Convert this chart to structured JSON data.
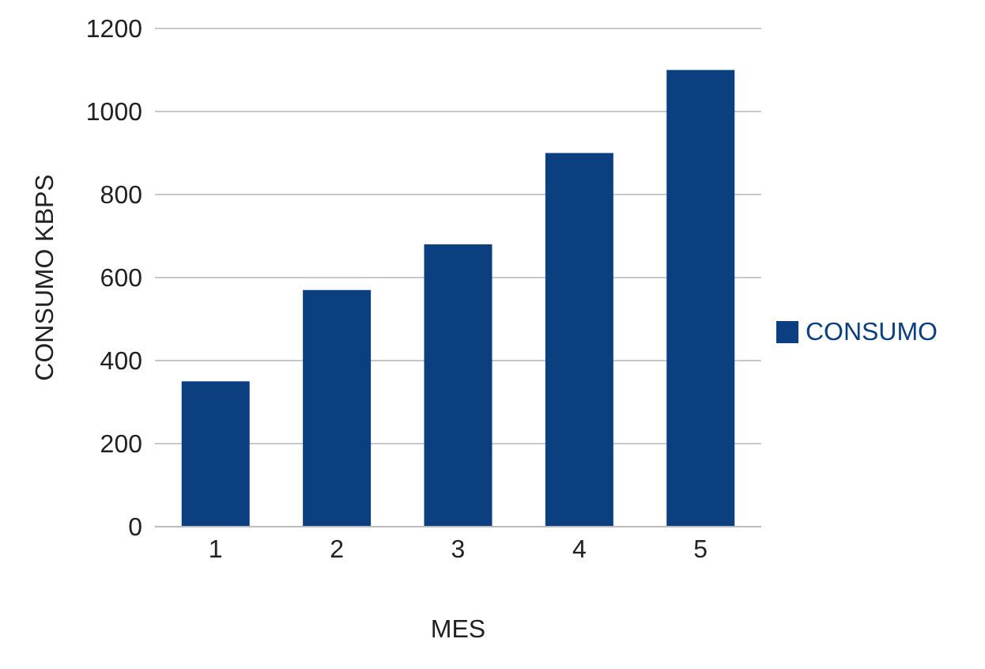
{
  "chart_data": {
    "type": "bar",
    "xlabel": "MES",
    "ylabel": "CONSUMO KBPS",
    "categories": [
      "1",
      "2",
      "3",
      "4",
      "5"
    ],
    "series": [
      {
        "name": "CONSUMO",
        "color": "#0b3f80",
        "values": [
          350,
          570,
          680,
          900,
          1100
        ]
      }
    ],
    "ylim": [
      0,
      1200
    ],
    "yticks": [
      0,
      200,
      400,
      600,
      800,
      1000,
      1200
    ],
    "grid": "y",
    "legend": "right"
  }
}
